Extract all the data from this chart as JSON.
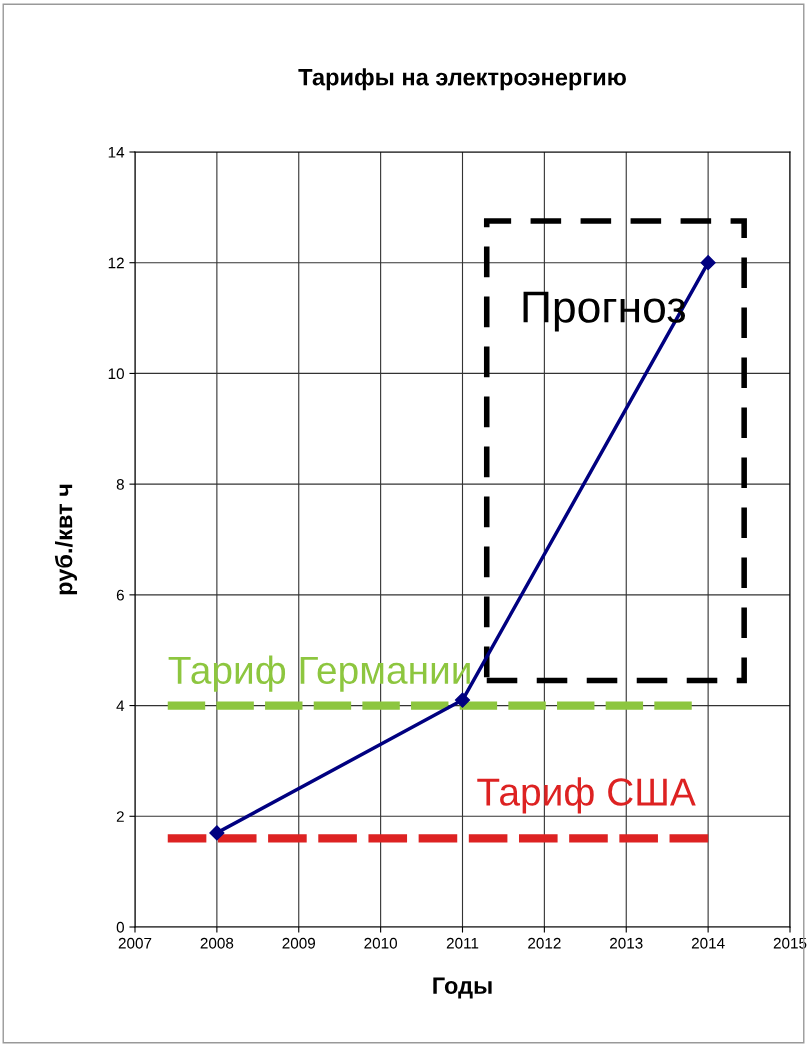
{
  "chart_data": {
    "type": "line",
    "title": "Тарифы на электроэнергию",
    "xlabel": "Годы",
    "ylabel": "руб./квт ч",
    "x": [
      2008,
      2011,
      2014
    ],
    "series": [
      {
        "color": "#000080",
        "values": [
          1.7,
          4.1,
          12
        ],
        "marker": "diamond",
        "line_style": "solid"
      },
      {
        "name": "Тариф Германии",
        "type": "line",
        "color": "#8dc63f",
        "x": [
          2007.4,
          2013.8
        ],
        "values": [
          4,
          4
        ],
        "marker": "none",
        "line_style": "dashed"
      },
      {
        "name": "Тариф США",
        "type": "line",
        "color": "#dd2222",
        "x": [
          2007.4,
          2014
        ],
        "values": [
          1.6,
          1.6
        ],
        "marker": "none",
        "line_style": "dashed"
      }
    ],
    "annotations": [
      "Прогноз"
    ],
    "xlim": [
      2007,
      2015
    ],
    "xticks": [
      2007,
      2008,
      2009,
      2010,
      2011,
      2012,
      2013,
      2014,
      2015
    ],
    "ylim": [
      0,
      14
    ],
    "yticks": [
      0,
      2,
      4,
      6,
      8,
      10,
      12,
      14
    ],
    "grid": true,
    "legend": false
  }
}
